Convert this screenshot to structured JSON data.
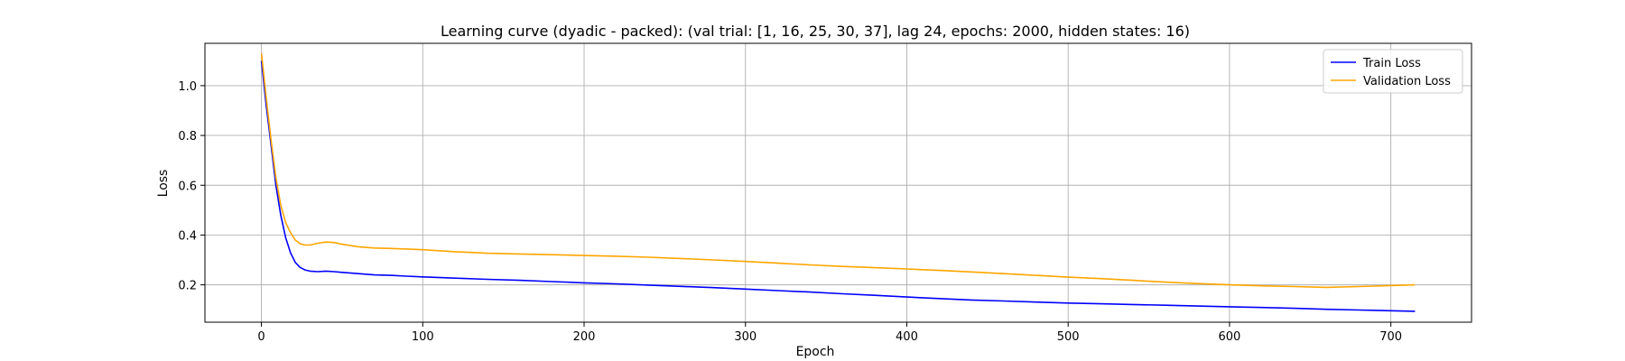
{
  "chart_data": {
    "type": "line",
    "title": "Learning curve (dyadic - packed): (val trial: [1, 16, 25, 30, 37], lag 24, epochs: 2000, hidden states: 16)",
    "xlabel": "Epoch",
    "ylabel": "Loss",
    "xlim": [
      -35,
      750
    ],
    "ylim": [
      0.05,
      1.17
    ],
    "xticks": [
      0,
      100,
      200,
      300,
      400,
      500,
      600,
      700
    ],
    "yticks": [
      0.2,
      0.4,
      0.6,
      0.8,
      1.0
    ],
    "grid": true,
    "legend_position": "top-right",
    "series": [
      {
        "name": "Train Loss",
        "color": "#0000ff",
        "x": [
          0,
          3,
          6,
          9,
          12,
          15,
          18,
          21,
          24,
          27,
          30,
          35,
          40,
          45,
          50,
          60,
          70,
          80,
          90,
          100,
          120,
          140,
          160,
          180,
          200,
          220,
          240,
          260,
          280,
          300,
          320,
          340,
          360,
          380,
          400,
          420,
          440,
          460,
          480,
          500,
          520,
          540,
          560,
          580,
          600,
          620,
          640,
          660,
          680,
          700,
          715
        ],
        "y": [
          1.1,
          0.92,
          0.76,
          0.6,
          0.48,
          0.39,
          0.33,
          0.29,
          0.27,
          0.26,
          0.255,
          0.253,
          0.255,
          0.253,
          0.25,
          0.245,
          0.24,
          0.238,
          0.235,
          0.232,
          0.227,
          0.222,
          0.218,
          0.213,
          0.208,
          0.204,
          0.199,
          0.194,
          0.189,
          0.183,
          0.177,
          0.171,
          0.164,
          0.158,
          0.151,
          0.145,
          0.139,
          0.135,
          0.131,
          0.127,
          0.124,
          0.121,
          0.118,
          0.115,
          0.112,
          0.109,
          0.106,
          0.102,
          0.099,
          0.096,
          0.094
        ]
      },
      {
        "name": "Validation Loss",
        "color": "#ffa500",
        "x": [
          0,
          3,
          6,
          9,
          12,
          15,
          18,
          21,
          24,
          27,
          30,
          35,
          40,
          45,
          50,
          60,
          70,
          80,
          90,
          100,
          120,
          140,
          160,
          180,
          200,
          220,
          240,
          260,
          280,
          300,
          320,
          340,
          360,
          380,
          400,
          420,
          440,
          460,
          480,
          500,
          520,
          540,
          560,
          580,
          600,
          620,
          640,
          660,
          680,
          700,
          715
        ],
        "y": [
          1.13,
          0.95,
          0.78,
          0.63,
          0.52,
          0.45,
          0.41,
          0.38,
          0.365,
          0.36,
          0.36,
          0.367,
          0.372,
          0.37,
          0.363,
          0.353,
          0.348,
          0.346,
          0.344,
          0.341,
          0.333,
          0.327,
          0.324,
          0.321,
          0.318,
          0.315,
          0.311,
          0.306,
          0.3,
          0.294,
          0.287,
          0.28,
          0.274,
          0.269,
          0.264,
          0.258,
          0.252,
          0.245,
          0.238,
          0.231,
          0.225,
          0.218,
          0.211,
          0.205,
          0.2,
          0.196,
          0.193,
          0.19,
          0.193,
          0.197,
          0.2
        ]
      }
    ]
  }
}
